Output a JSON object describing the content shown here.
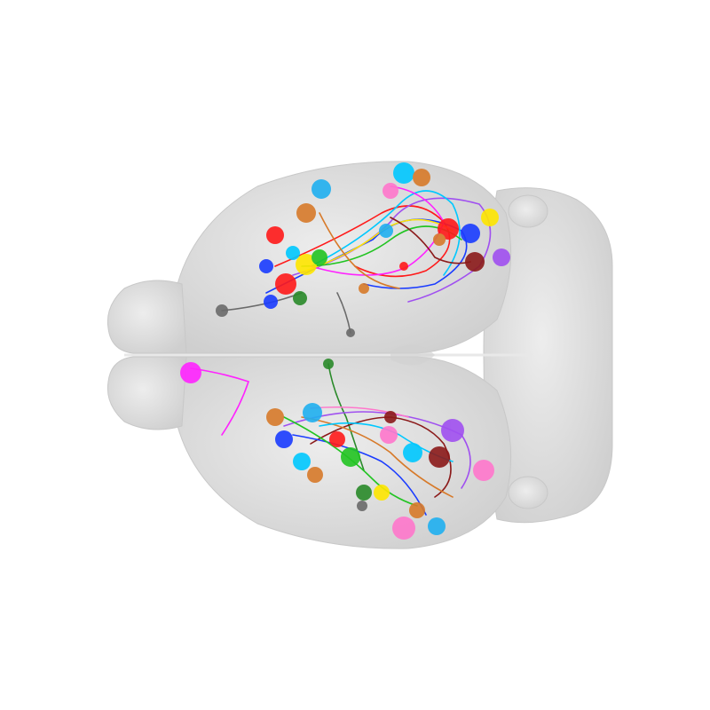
{
  "scene": {
    "subject": "mouse-brain-dorsal-view",
    "background": "#ffffff",
    "brain_fill": "#dedede",
    "brain_edge": "#c8c8c8",
    "neuron_colors": [
      "#ff1a1a",
      "#1a3cff",
      "#00c8ff",
      "#ffe600",
      "#22c422",
      "#ff22ff",
      "#d77a2a",
      "#8b1a1a",
      "#a050f0",
      "#ff77cc",
      "#6a6a6a",
      "#2a8a2a",
      "#20b0f0"
    ]
  }
}
